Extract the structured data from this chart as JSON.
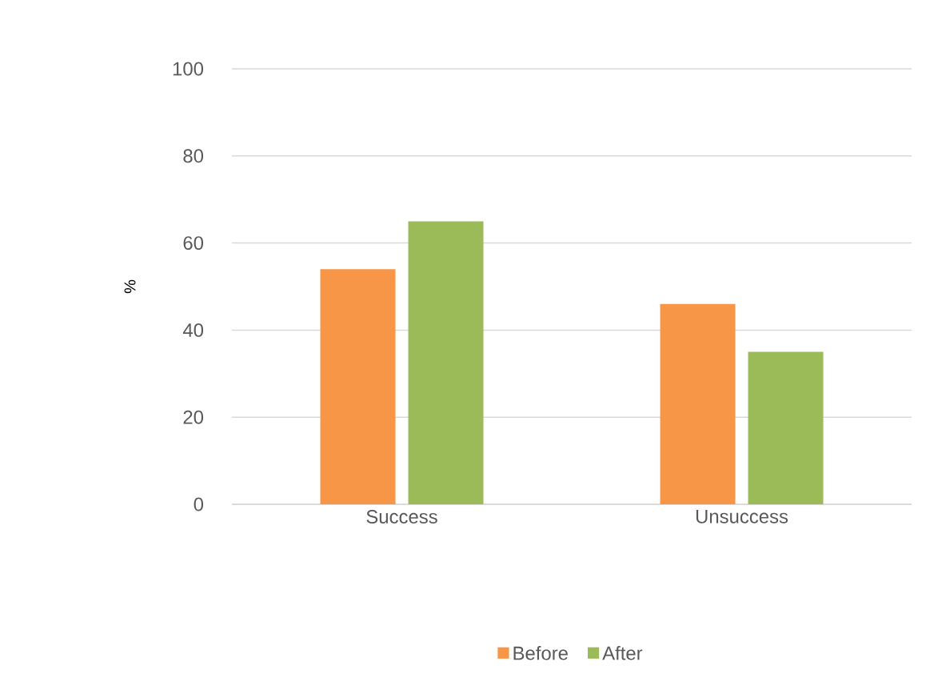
{
  "chart_data": {
    "type": "bar",
    "ylabel": "%",
    "categories": [
      "Success",
      "Unsuccess"
    ],
    "series": [
      {
        "name": "Before",
        "color": "#f79646",
        "values": [
          54,
          46
        ]
      },
      {
        "name": "After",
        "color": "#9bbb59",
        "values": [
          65,
          35
        ]
      }
    ],
    "ylim": [
      0,
      100
    ],
    "yticks": [
      0,
      20,
      40,
      60,
      80,
      100
    ],
    "grid": "y",
    "legend": "bottom"
  }
}
